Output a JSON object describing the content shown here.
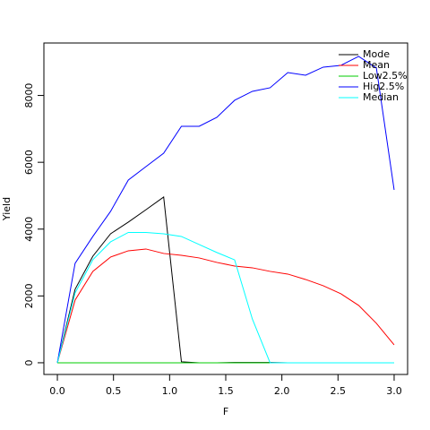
{
  "chart_data": {
    "type": "line",
    "xlabel": "F",
    "ylabel": "Yield",
    "x": [
      0,
      0.158,
      0.316,
      0.474,
      0.632,
      0.789,
      0.947,
      1.105,
      1.263,
      1.421,
      1.579,
      1.737,
      1.895,
      2.053,
      2.211,
      2.368,
      2.526,
      2.684,
      2.842,
      3.0
    ],
    "series": [
      {
        "name": "Mode",
        "color": "#000000",
        "values": [
          0,
          2200,
          3190,
          3860,
          4210,
          4580,
          4960,
          30,
          0,
          0,
          10,
          10,
          10,
          0,
          0,
          0,
          0,
          0,
          0,
          0
        ]
      },
      {
        "name": "Mean",
        "color": "#ff0000",
        "values": [
          0,
          1877,
          2735,
          3164,
          3351,
          3405,
          3271,
          3217,
          3137,
          3003,
          2895,
          2842,
          2735,
          2654,
          2493,
          2306,
          2064,
          1716,
          1180,
          536
        ]
      },
      {
        "name": "Low2.5%",
        "color": "#00cc00",
        "values": [
          0,
          0,
          0,
          0,
          0,
          0,
          0,
          0,
          0,
          0,
          0,
          0,
          0,
          0,
          0,
          0,
          0,
          0,
          0,
          0
        ]
      },
      {
        "name": "Hig2.5%",
        "color": "#0000ff",
        "values": [
          0,
          2976,
          3780,
          4531,
          5469,
          5871,
          6273,
          7078,
          7078,
          7346,
          7855,
          8123,
          8231,
          8686,
          8606,
          8847,
          8901,
          9169,
          8820,
          5174
        ]
      },
      {
        "name": "Median",
        "color": "#00ffff",
        "values": [
          0,
          2091,
          3083,
          3619,
          3900,
          3900,
          3860,
          3780,
          3540,
          3300,
          3080,
          1310,
          0,
          0,
          0,
          0,
          0,
          0,
          0,
          0
        ]
      }
    ],
    "xlim": [
      -0.12,
      3.12
    ],
    "ylim": [
      -350,
      9570
    ],
    "xticks": [
      {
        "value": 0,
        "label": "0.0"
      },
      0.5,
      {
        "value": 1,
        "label": "1.0"
      },
      1.5,
      {
        "value": 2,
        "label": "2.0"
      },
      2.5,
      {
        "value": 3,
        "label": "3.0"
      }
    ],
    "yticks": [
      0,
      2000,
      4000,
      6000,
      8000
    ],
    "legend": "top-right"
  }
}
